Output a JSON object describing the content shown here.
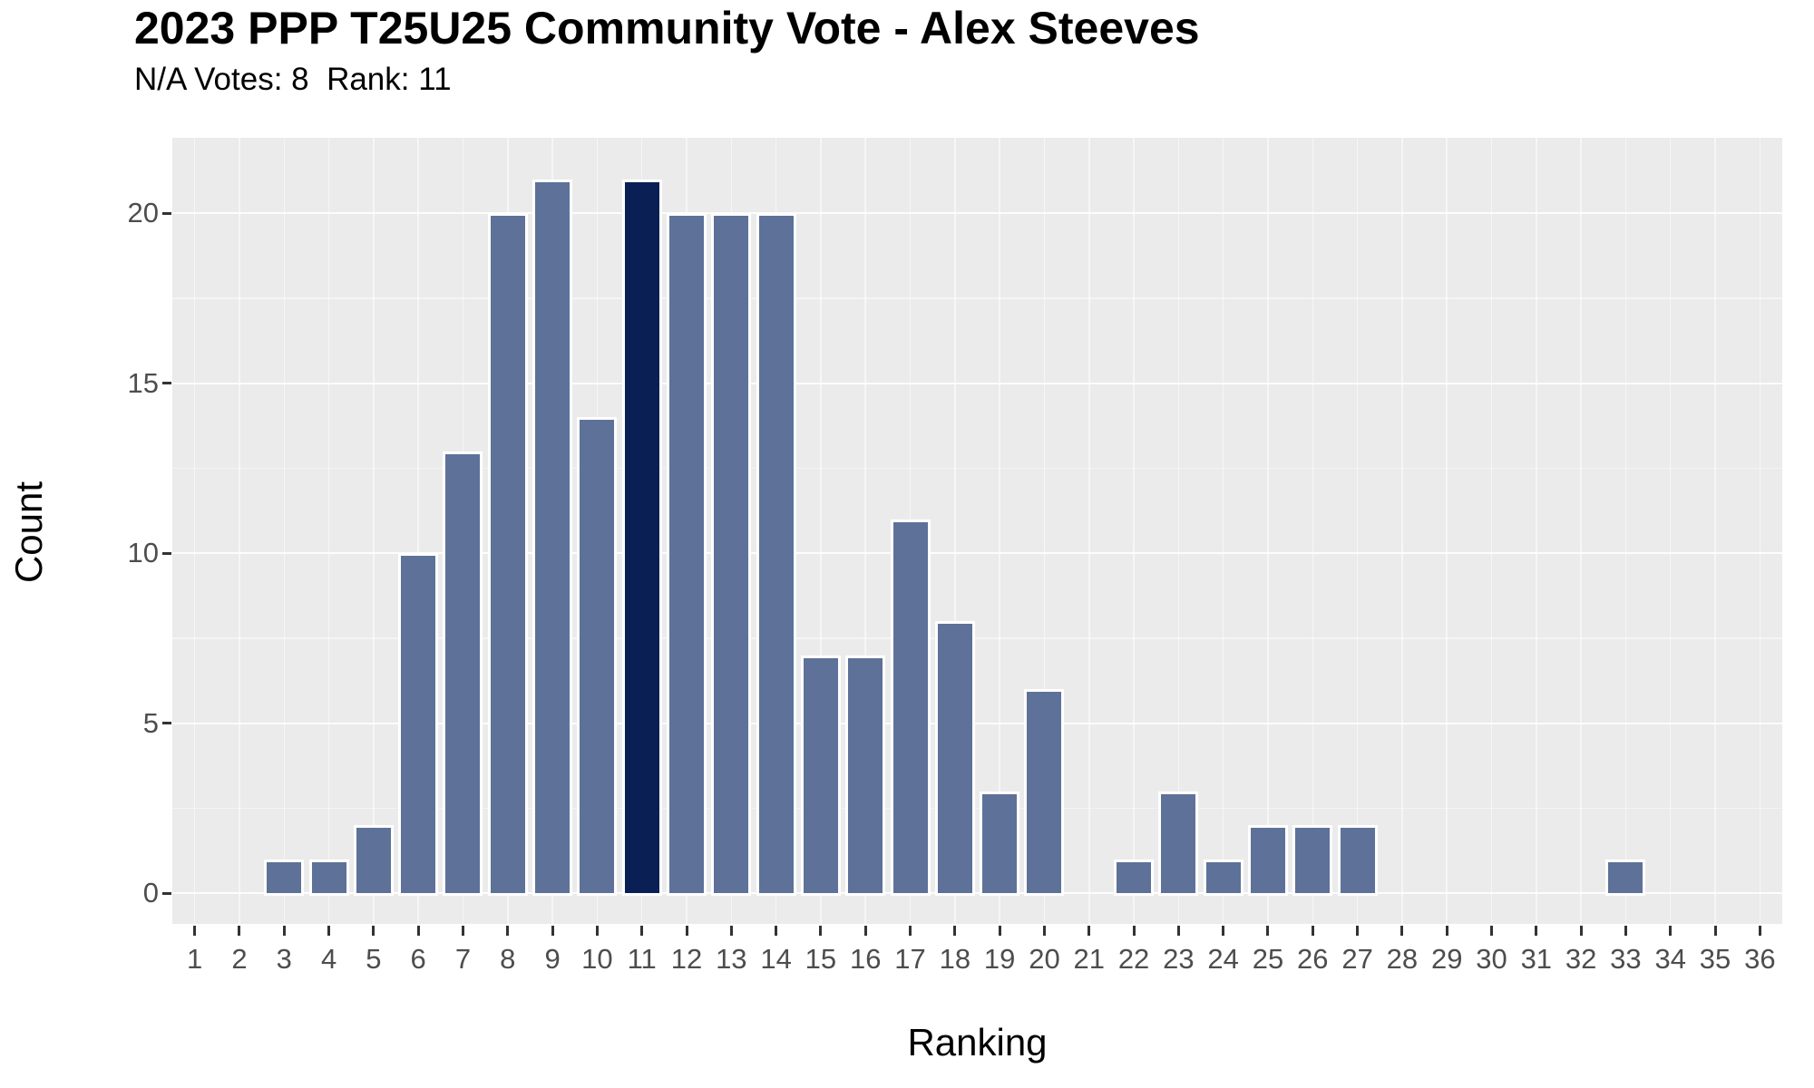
{
  "header": {
    "title": "2023 PPP T25U25 Community Vote - Alex Steeves",
    "subtitle": "N/A Votes: 8  Rank: 11"
  },
  "chart_data": {
    "type": "bar",
    "title": "2023 PPP T25U25 Community Vote - Alex Steeves",
    "subtitle": "N/A Votes: 8  Rank: 11",
    "na_votes": 8,
    "rank": 11,
    "xlabel": "Ranking",
    "ylabel": "Count",
    "categories": [
      "1",
      "2",
      "3",
      "4",
      "5",
      "6",
      "7",
      "8",
      "9",
      "10",
      "11",
      "12",
      "13",
      "14",
      "15",
      "16",
      "17",
      "18",
      "19",
      "20",
      "21",
      "22",
      "23",
      "24",
      "25",
      "26",
      "27",
      "28",
      "29",
      "30",
      "31",
      "32",
      "33",
      "34",
      "35",
      "36"
    ],
    "values": [
      0,
      0,
      1,
      1,
      2,
      10,
      13,
      20,
      21,
      14,
      21,
      20,
      20,
      20,
      7,
      7,
      11,
      8,
      3,
      6,
      0,
      1,
      3,
      1,
      2,
      2,
      2,
      0,
      0,
      0,
      0,
      0,
      1,
      0,
      0,
      0
    ],
    "highlight_category": "11",
    "yticks": [
      0,
      5,
      10,
      15,
      20
    ],
    "yticks_minor": [
      2.5,
      7.5,
      12.5,
      17.5
    ],
    "ylim": [
      -0.9,
      22.2
    ],
    "grid": true,
    "legend_position": "none",
    "colors": {
      "bar": "#5E7198",
      "bar_highlight": "#0A2055",
      "bar_outline": "#FFFFFF",
      "panel_background": "#EBEBEB",
      "grid_major": "#FFFFFF",
      "tick_text": "#4D4D4D",
      "tick_mark": "#333333",
      "text": "#000000"
    }
  }
}
